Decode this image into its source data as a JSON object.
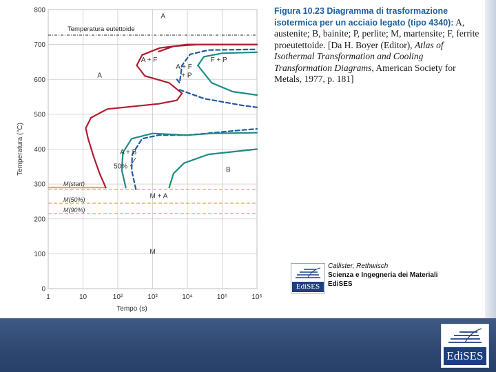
{
  "caption": {
    "figure_number": "Figura 10.23",
    "title": "Diagramma di trasformazione isotermica per un acciaio legato (tipo 4340):",
    "legend_text": "A, austenite; B, bainite; P, perlite; M, martensite; F, ferrite proeutettoide. [Da H. Boyer (Editor),",
    "source_italic": "Atlas of Isothermal Transformation and Cooling Transformation Diagrams",
    "source_rest": ", American Society for Metals, 1977, p. 181]"
  },
  "publisher": {
    "author": "Callister, Rethwisch",
    "book": "Scienza e Ingegneria dei Materiali",
    "house": "EdiSES",
    "logo_word": "EdiSES"
  },
  "corner_logo": {
    "word": "EdiSES"
  },
  "chart_data": {
    "type": "line",
    "title": "",
    "xlabel": "Tempo (s)",
    "ylabel": "Temperatura (°C)",
    "x_scale": "log",
    "xlim": [
      1,
      1000000
    ],
    "ylim": [
      0,
      800
    ],
    "x_ticks": [
      {
        "value": 1,
        "label": "1"
      },
      {
        "value": 10,
        "label": "10"
      },
      {
        "value": 100,
        "label": "10²"
      },
      {
        "value": 1000,
        "label": "10³"
      },
      {
        "value": 10000,
        "label": "10⁴"
      },
      {
        "value": 100000,
        "label": "10⁵"
      },
      {
        "value": 1000000,
        "label": "10⁶"
      }
    ],
    "y_ticks": [
      0,
      100,
      200,
      300,
      400,
      500,
      600,
      700,
      800
    ],
    "grid": true,
    "colors": {
      "start": "#b01c2e",
      "finish": "#1b8c86",
      "fifty": "#1c5aa6",
      "martensite": "#e8a23a",
      "eutectoid": "#222222"
    },
    "eutectoid": {
      "label": "Temperatura eutettoide",
      "temperature": 727
    },
    "martensite_lines": [
      {
        "label": "M(start)",
        "temperature": 290,
        "x_end": 45,
        "style": "solid"
      },
      {
        "label": "M(50%)",
        "temperature": 245,
        "x_end": 1000000,
        "style": "dashed"
      },
      {
        "label": "M(90%)",
        "temperature": 215,
        "x_end": 1000000,
        "style": "dashed"
      },
      {
        "label": "",
        "temperature": 285,
        "x_end": 1000000,
        "style": "dashed"
      }
    ],
    "series": [
      {
        "role": "start",
        "style": "solid",
        "points": [
          [
            45,
            290
          ],
          [
            30,
            330
          ],
          [
            20,
            380
          ],
          [
            14,
            430
          ],
          [
            12,
            460
          ],
          [
            17,
            490
          ],
          [
            50,
            515
          ],
          [
            1500,
            530
          ],
          [
            5000,
            540
          ],
          [
            7000,
            560
          ],
          [
            3000,
            590
          ],
          [
            600,
            610
          ],
          [
            350,
            640
          ],
          [
            500,
            670
          ],
          [
            1600,
            690
          ],
          [
            10000,
            700
          ],
          [
            1000000,
            700
          ]
        ]
      },
      {
        "role": "start",
        "style": "solid",
        "points": [
          [
            1500,
            680
          ],
          [
            4000,
            695
          ],
          [
            20000,
            700
          ],
          [
            1000000,
            700
          ]
        ]
      },
      {
        "role": "fifty",
        "style": "dashed",
        "points": [
          [
            5000,
            600
          ],
          [
            6000,
            590
          ],
          [
            7000,
            640
          ],
          [
            12000,
            672
          ],
          [
            40000,
            684
          ],
          [
            1000000,
            686
          ]
        ]
      },
      {
        "role": "fifty",
        "style": "dashed",
        "points": [
          [
            6000,
            570
          ],
          [
            30000,
            545
          ],
          [
            400000,
            525
          ],
          [
            1000000,
            520
          ]
        ]
      },
      {
        "role": "fifty",
        "style": "dashed",
        "points": [
          [
            10000,
            440
          ],
          [
            400000,
            455
          ],
          [
            1000000,
            458
          ]
        ]
      },
      {
        "role": "fifty",
        "style": "dashed",
        "points": [
          [
            330,
            285
          ],
          [
            250,
            340
          ],
          [
            260,
            385
          ],
          [
            500,
            430
          ],
          [
            1500,
            440
          ],
          [
            10000,
            440
          ]
        ]
      },
      {
        "role": "finish",
        "style": "solid",
        "points": [
          [
            20000,
            640
          ],
          [
            50000,
            590
          ],
          [
            200000,
            565
          ],
          [
            1000000,
            555
          ]
        ]
      },
      {
        "role": "finish",
        "style": "solid",
        "points": [
          [
            20000,
            640
          ],
          [
            30000,
            665
          ],
          [
            100000,
            675
          ],
          [
            1000000,
            678
          ]
        ]
      },
      {
        "role": "finish",
        "style": "solid",
        "points": [
          [
            10000,
            440
          ],
          [
            50000,
            445
          ],
          [
            1000000,
            447
          ]
        ]
      },
      {
        "role": "finish",
        "style": "solid",
        "points": [
          [
            170,
            290
          ],
          [
            130,
            340
          ],
          [
            140,
            390
          ],
          [
            250,
            430
          ],
          [
            1000,
            445
          ],
          [
            10000,
            440
          ]
        ]
      },
      {
        "role": "finish",
        "style": "solid",
        "points": [
          [
            3000,
            290
          ],
          [
            4000,
            330
          ],
          [
            8000,
            360
          ],
          [
            40000,
            385
          ],
          [
            1000000,
            400
          ]
        ]
      }
    ],
    "annotations": [
      {
        "text": "A",
        "x": 2000,
        "y": 775
      },
      {
        "text": "A",
        "x": 30,
        "y": 605
      },
      {
        "text": "A + F",
        "x": 800,
        "y": 650
      },
      {
        "text": "A + F",
        "x": 8000,
        "y": 630
      },
      {
        "text": "+ P",
        "x": 9500,
        "y": 605
      },
      {
        "text": "F + P",
        "x": 80000,
        "y": 650
      },
      {
        "text": "A + B",
        "x": 200,
        "y": 385
      },
      {
        "text": "50%",
        "x": 120,
        "y": 345
      },
      {
        "text": "B",
        "x": 150000,
        "y": 335
      },
      {
        "text": "M + A",
        "x": 1500,
        "y": 260
      },
      {
        "text": "M",
        "x": 1000,
        "y": 100
      }
    ]
  }
}
